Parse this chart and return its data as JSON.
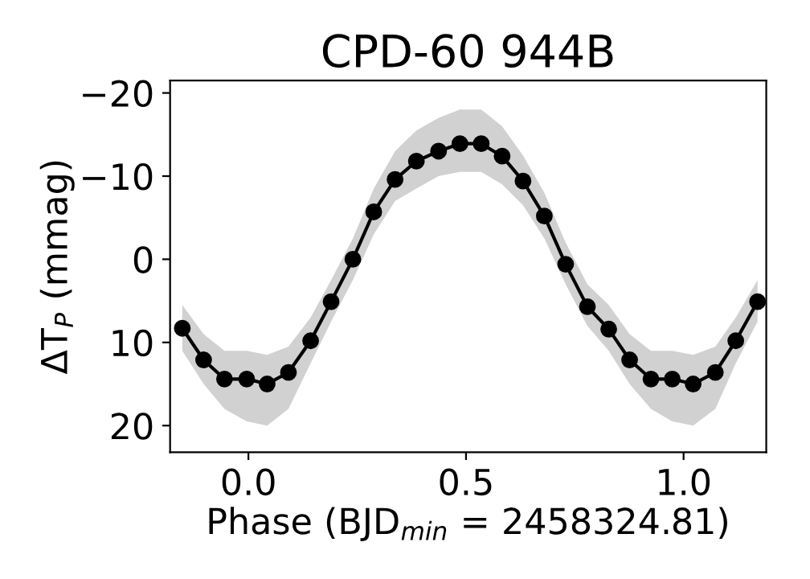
{
  "chart_data": {
    "type": "line",
    "title": "CPD-60 944B",
    "xlabel": "Phase (BJD$_{min}$ = 2458324.81)",
    "ylabel": "ΔT$_{P}$ (mmag)",
    "xlim": [
      -0.18,
      1.19
    ],
    "ylim": [
      23.2,
      -21.5
    ],
    "xticks": [
      {
        "value": 0,
        "label": "0.0"
      },
      {
        "value": 0.5,
        "label": "0.5"
      },
      {
        "value": 1,
        "label": "1.0"
      }
    ],
    "yticks": [
      {
        "value": -20,
        "label": "−20"
      },
      {
        "value": -10,
        "label": "−10"
      },
      {
        "value": 0,
        "label": "0"
      },
      {
        "value": 10,
        "label": "10"
      },
      {
        "value": 20,
        "label": "20"
      }
    ],
    "grid": false,
    "legend": false,
    "marker": "circle",
    "line_style": "solid",
    "series": [
      {
        "color": "#000000",
        "x": [
          -0.152,
          -0.103,
          -0.055,
          -0.004,
          0.043,
          0.092,
          0.143,
          0.19,
          0.24,
          0.288,
          0.337,
          0.386,
          0.437,
          0.486,
          0.535,
          0.583,
          0.631,
          0.68,
          0.729,
          0.779,
          0.828,
          0.876,
          0.925,
          0.974,
          1.022,
          1.073,
          1.12,
          1.17
        ],
        "values": [
          8.3,
          12.1,
          14.4,
          14.4,
          15.0,
          13.6,
          9.8,
          5.1,
          0.0,
          -5.7,
          -9.6,
          -11.8,
          -13.0,
          -13.9,
          -13.9,
          -12.4,
          -9.4,
          -5.2,
          0.6,
          5.7,
          8.4,
          12.1,
          14.4,
          14.4,
          15.0,
          13.6,
          9.8,
          5.1
        ],
        "lower": [
          5.5,
          9.0,
          11.0,
          11.0,
          11.5,
          10.5,
          7.0,
          2.5,
          -2.5,
          -8.5,
          -13.0,
          -15.5,
          -17.0,
          -18.0,
          -18.0,
          -16.0,
          -12.5,
          -8.0,
          -2.0,
          3.0,
          5.5,
          9.0,
          11.0,
          11.0,
          11.5,
          10.5,
          7.0,
          2.5
        ],
        "upper": [
          11.0,
          15.0,
          18.0,
          19.5,
          20.0,
          18.0,
          12.5,
          7.5,
          2.5,
          -3.0,
          -7.0,
          -8.5,
          -10.0,
          -10.5,
          -10.5,
          -9.0,
          -6.5,
          -2.5,
          3.0,
          8.0,
          11.0,
          15.0,
          18.0,
          19.5,
          20.0,
          18.0,
          12.5,
          7.5
        ]
      }
    ]
  }
}
